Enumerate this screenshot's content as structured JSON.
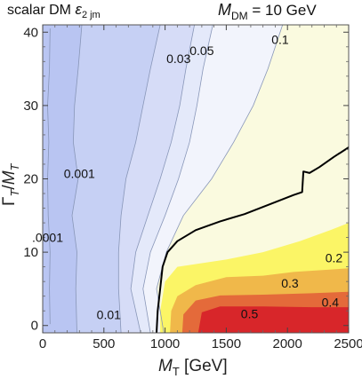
{
  "chart_data": {
    "type": "contour",
    "title_left": {
      "text": "scalar DM ",
      "epsilon": "ε",
      "sub": "2 jm"
    },
    "title_right": {
      "main": "M",
      "sub": "DM",
      "rest": " = 10 GeV"
    },
    "xlabel": {
      "main": "M",
      "sub": "T",
      "rest": " [GeV]"
    },
    "ylabel": {
      "g": "Γ",
      "gsub": "T",
      "slash": "/",
      "m": "M",
      "msub": "T"
    },
    "xlim": [
      0,
      2500
    ],
    "ylim": [
      -1,
      41
    ],
    "x_ticks": [
      "0",
      "500",
      "1000",
      "1500",
      "2000",
      "2500"
    ],
    "y_ticks": [
      "0",
      "10",
      "20",
      "30",
      "40"
    ],
    "x_tick_values": [
      0,
      500,
      1000,
      1500,
      2000,
      2500
    ],
    "y_tick_values": [
      0,
      10,
      20,
      30,
      40
    ],
    "contour_levels": [
      {
        "label": "0.0001",
        "display": ".0001",
        "at": [
          40,
          12.0
        ]
      },
      {
        "label": "0.001",
        "display": "0.001",
        "at": [
          300,
          20.7
        ]
      },
      {
        "label": "0.01",
        "display": "0.01",
        "at": [
          540,
          1.5
        ]
      },
      {
        "label": "0.03",
        "display": "0.03",
        "at": [
          1110,
          36.4
        ]
      },
      {
        "label": "0.05",
        "display": "0.05",
        "at": [
          1300,
          37.5
        ]
      },
      {
        "label": "0.1",
        "display": "0.1",
        "at": [
          1940,
          39.0
        ]
      },
      {
        "label": "0.2",
        "display": "0.2",
        "at": [
          2380,
          9.2
        ]
      },
      {
        "label": "0.3",
        "display": "0.3",
        "at": [
          2020,
          5.8
        ]
      },
      {
        "label": "0.4",
        "display": "0.4",
        "at": [
          2350,
          3.2
        ]
      },
      {
        "label": "0.5",
        "display": "0.5",
        "at": [
          1690,
          1.6
        ]
      }
    ],
    "regions": [
      {
        "level": "0.0001-0.001",
        "color": "#b9c5f2",
        "boundary": [
          [
            0,
            -1
          ],
          [
            0,
            41
          ],
          [
            2500,
            41
          ],
          [
            2500,
            -1
          ]
        ]
      },
      {
        "level": "0.001-0.01",
        "color": "#c6d0f4",
        "boundary": [
          [
            280,
            -1
          ],
          [
            270,
            5
          ],
          [
            280,
            10
          ],
          [
            240,
            15
          ],
          [
            290,
            20
          ],
          [
            250,
            25
          ],
          [
            260,
            30
          ],
          [
            290,
            35
          ],
          [
            320,
            41
          ],
          [
            2500,
            41
          ],
          [
            2500,
            -1
          ]
        ]
      },
      {
        "level": "0.01-0.03",
        "color": "#d6dcf7",
        "boundary": [
          [
            640,
            -1
          ],
          [
            620,
            5
          ],
          [
            620,
            10
          ],
          [
            640,
            15
          ],
          [
            680,
            20
          ],
          [
            760,
            25
          ],
          [
            820,
            30
          ],
          [
            880,
            35
          ],
          [
            960,
            41
          ],
          [
            2500,
            41
          ],
          [
            2500,
            -1
          ]
        ]
      },
      {
        "level": "0.03-0.05",
        "color": "#e4e9fa",
        "boundary": [
          [
            800,
            -1
          ],
          [
            720,
            5
          ],
          [
            760,
            10
          ],
          [
            860,
            15
          ],
          [
            960,
            20
          ],
          [
            1050,
            25
          ],
          [
            1120,
            30
          ],
          [
            1170,
            35
          ],
          [
            1240,
            41
          ],
          [
            2500,
            41
          ],
          [
            2500,
            -1
          ]
        ]
      },
      {
        "level": "0.05-0.1",
        "color": "#f2f4fc",
        "boundary": [
          [
            880,
            -1
          ],
          [
            820,
            5
          ],
          [
            880,
            10
          ],
          [
            1000,
            15
          ],
          [
            1110,
            20
          ],
          [
            1200,
            25
          ],
          [
            1260,
            30
          ],
          [
            1310,
            35
          ],
          [
            1390,
            41
          ],
          [
            2500,
            41
          ],
          [
            2500,
            -1
          ]
        ]
      },
      {
        "level": "0.1-0.2",
        "color": "#fafadf",
        "boundary": [
          [
            990,
            -1
          ],
          [
            930,
            5
          ],
          [
            1010,
            10
          ],
          [
            1150,
            15
          ],
          [
            1380,
            20
          ],
          [
            1560,
            25
          ],
          [
            1720,
            30
          ],
          [
            1840,
            35
          ],
          [
            1960,
            41
          ],
          [
            2500,
            41
          ],
          [
            2500,
            -1
          ]
        ]
      },
      {
        "level": "0.2-0.3",
        "color": "#fbf566",
        "boundary": [
          [
            960,
            -1
          ],
          [
            960,
            2
          ],
          [
            1000,
            6
          ],
          [
            1100,
            8
          ],
          [
            1500,
            9
          ],
          [
            1800,
            10
          ],
          [
            2100,
            11.5
          ],
          [
            2350,
            13
          ],
          [
            2500,
            14
          ],
          [
            2500,
            -1
          ]
        ]
      },
      {
        "level": "0.3-0.4",
        "color": "#f0b84a",
        "boundary": [
          [
            1040,
            -1
          ],
          [
            1050,
            2
          ],
          [
            1100,
            4
          ],
          [
            1250,
            5.5
          ],
          [
            1500,
            6.6
          ],
          [
            1800,
            6.8
          ],
          [
            2050,
            7.3
          ],
          [
            2500,
            7.8
          ],
          [
            2500,
            -1
          ]
        ]
      },
      {
        "level": "0.4-0.5",
        "color": "#e46a3a",
        "boundary": [
          [
            1140,
            -1
          ],
          [
            1150,
            1.5
          ],
          [
            1250,
            3.4
          ],
          [
            1450,
            4.1
          ],
          [
            1800,
            4.2
          ],
          [
            2200,
            4.4
          ],
          [
            2500,
            4.6
          ],
          [
            2500,
            -1
          ]
        ]
      },
      {
        "level": ">0.5",
        "color": "#d8262a",
        "boundary": [
          [
            1270,
            -1
          ],
          [
            1300,
            1.8
          ],
          [
            1450,
            2.6
          ],
          [
            1800,
            2.6
          ],
          [
            2200,
            2.5
          ],
          [
            2500,
            2.5
          ],
          [
            2500,
            -1
          ]
        ]
      }
    ],
    "contour_lines": [
      [
        [
          60,
          0.2
        ],
        [
          55,
          5
        ],
        [
          60,
          10
        ],
        [
          45,
          15
        ],
        [
          40,
          20
        ],
        [
          50,
          25
        ],
        [
          40,
          30
        ],
        [
          55,
          35
        ],
        [
          60,
          40.5
        ]
      ],
      [
        [
          280,
          -1
        ],
        [
          270,
          5
        ],
        [
          280,
          10
        ],
        [
          240,
          15
        ],
        [
          290,
          20
        ],
        [
          250,
          25
        ],
        [
          260,
          30
        ],
        [
          290,
          35
        ],
        [
          320,
          41
        ]
      ],
      [
        [
          640,
          -1
        ],
        [
          620,
          5
        ],
        [
          620,
          10
        ],
        [
          640,
          15
        ],
        [
          680,
          20
        ],
        [
          760,
          25
        ],
        [
          820,
          30
        ],
        [
          880,
          35
        ],
        [
          960,
          41
        ]
      ],
      [
        [
          800,
          -1
        ],
        [
          720,
          5
        ],
        [
          760,
          10
        ],
        [
          860,
          15
        ],
        [
          960,
          20
        ],
        [
          1050,
          25
        ],
        [
          1120,
          30
        ],
        [
          1170,
          35
        ],
        [
          1240,
          41
        ]
      ],
      [
        [
          880,
          -1
        ],
        [
          820,
          5
        ],
        [
          880,
          10
        ],
        [
          1000,
          15
        ],
        [
          1110,
          20
        ],
        [
          1200,
          25
        ],
        [
          1260,
          30
        ],
        [
          1310,
          35
        ],
        [
          1390,
          41
        ]
      ],
      [
        [
          990,
          -1
        ],
        [
          930,
          5
        ],
        [
          1010,
          10
        ],
        [
          1150,
          15
        ],
        [
          1380,
          20
        ],
        [
          1560,
          25
        ],
        [
          1720,
          30
        ],
        [
          1840,
          35
        ],
        [
          1960,
          41
        ]
      ]
    ],
    "exclusion_line": [
      [
        930,
        -1
      ],
      [
        940,
        2
      ],
      [
        960,
        5
      ],
      [
        980,
        8
      ],
      [
        1020,
        10
      ],
      [
        1100,
        11.5
      ],
      [
        1250,
        13
      ],
      [
        1450,
        14.2
      ],
      [
        1650,
        15.2
      ],
      [
        1850,
        16.5
      ],
      [
        2050,
        17.8
      ],
      [
        2120,
        18.2
      ],
      [
        2130,
        21
      ],
      [
        2180,
        20.8
      ],
      [
        2260,
        21.6
      ],
      [
        2380,
        23
      ],
      [
        2500,
        24.3
      ]
    ],
    "grid": false,
    "colors": {
      "frame": "#555555",
      "exclusion": "#000000",
      "contour": "#8896b8"
    }
  }
}
